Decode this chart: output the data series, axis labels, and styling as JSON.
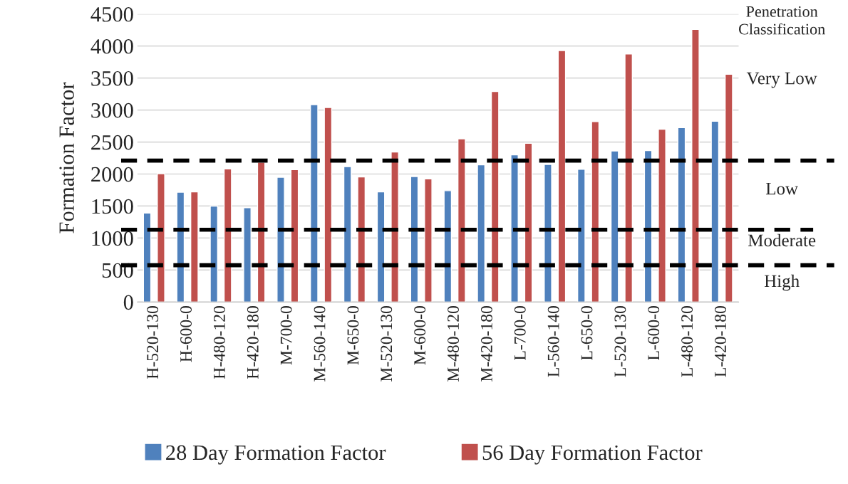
{
  "chart_data": {
    "type": "bar",
    "ylabel": "Formation Factor",
    "categories": [
      "H-520-130",
      "H-600-0",
      "H-480-120",
      "H-420-180",
      "M-700-0",
      "M-560-140",
      "M-650-0",
      "M-520-130",
      "M-600-0",
      "M-480-120",
      "M-420-180",
      "L-700-0",
      "L-560-140",
      "L-650-0",
      "L-520-130",
      "L-600-0",
      "L-480-120",
      "L-420-180"
    ],
    "series": [
      {
        "name": "28 Day Formation Factor",
        "color": "#4f81bd",
        "values": [
          1390,
          1715,
          1500,
          1475,
          1950,
          3085,
          2115,
          1720,
          1960,
          1740,
          2145,
          2300,
          2150,
          2075,
          2360,
          2365,
          2725,
          2825
        ]
      },
      {
        "name": "56 Day Formation Factor",
        "color": "#c0504d",
        "values": [
          2005,
          1720,
          2080,
          2185,
          2070,
          3040,
          1955,
          2345,
          1925,
          2550,
          3290,
          2480,
          3930,
          2820,
          3875,
          2700,
          4260,
          3560
        ]
      }
    ],
    "ylim": [
      0,
      4500
    ],
    "yticks": [
      0,
      500,
      1000,
      1500,
      2000,
      2500,
      3000,
      3500,
      4000,
      4500
    ],
    "grid": "y",
    "legend": "bottom",
    "ref_lines": [
      {
        "axis": "y",
        "value": 2210,
        "color": "#000000",
        "line_style": "dashed"
      },
      {
        "axis": "y",
        "value": 1130,
        "color": "#000000",
        "line_style": "dashed"
      },
      {
        "axis": "y",
        "value": 575,
        "color": "#000000",
        "line_style": "dashed"
      }
    ],
    "annotations": [
      "Penetration\nClassification",
      "Very Low",
      "Low",
      "Moderate",
      "High"
    ]
  }
}
